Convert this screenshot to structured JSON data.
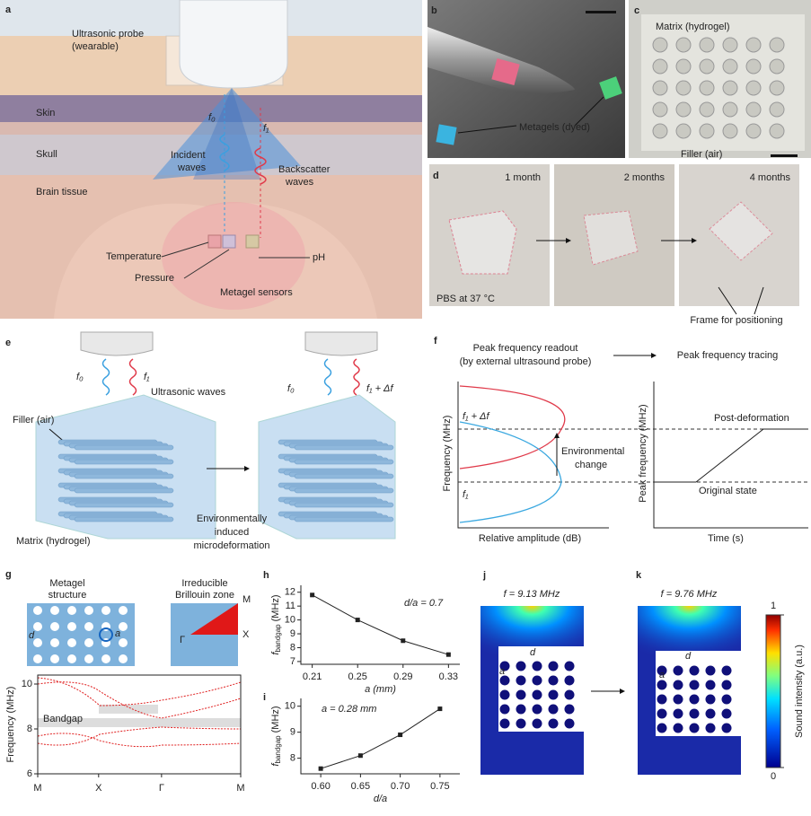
{
  "figure": {
    "a": {
      "letter": "a",
      "probe": [
        "Ultrasonic probe",
        "(wearable)"
      ],
      "skin": "Skin",
      "skull": "Skull",
      "brain": "Brain tissue",
      "f0": "f₀",
      "f1": "f₁",
      "incident": [
        "Incident",
        "waves"
      ],
      "backscatter": [
        "Backscatter",
        "waves"
      ],
      "temperature": "Temperature",
      "pressure": "Pressure",
      "ph": "pH",
      "sensors": "Metagel sensors"
    },
    "b": {
      "letter": "b",
      "label": "Metagels (dyed)"
    },
    "c": {
      "letter": "c",
      "matrix": "Matrix (hydrogel)",
      "filler": "Filler (air)"
    },
    "d": {
      "letter": "d",
      "times": [
        "1 month",
        "2 months",
        "4 months"
      ],
      "pbs": "PBS at 37 °C",
      "frame": "Frame for positioning"
    },
    "e": {
      "letter": "e",
      "f0": "f₀",
      "f1": "f₁",
      "waves": "Ultrasonic waves",
      "filler": "Filler (air)",
      "matrix": "Matrix (hydrogel)",
      "deformation": [
        "Environmentally",
        "induced",
        "microdeformation"
      ],
      "f0_right": "f₀",
      "f1_shift": "f₁ + Δf"
    },
    "f": {
      "letter": "f",
      "readout": [
        "Peak frequency readout",
        "(by external ultrasound probe)"
      ],
      "tracing": "Peak frequency tracing",
      "left_ylabel": "Frequency (MHz)",
      "left_xlabel": "Relative amplitude (dB)",
      "f1_shift": "f₁ + Δf",
      "f1": "f₁",
      "change": [
        "Environmental",
        "change"
      ],
      "right_ylabel": "Peak frequency (MHz)",
      "right_xlabel": "Time (s)",
      "post": "Post-deformation",
      "original": "Original state"
    },
    "g": {
      "letter": "g",
      "structure": [
        "Metagel",
        "structure"
      ],
      "zone": [
        "Irreducible",
        "Brillouin zone"
      ],
      "d": "d",
      "a": "a",
      "M": "M",
      "X": "X",
      "Gamma": "Γ"
    },
    "h": {
      "letter": "h"
    },
    "i": {
      "letter": "i"
    },
    "j": {
      "letter": "j",
      "freq": "f = 9.13 MHz",
      "d": "d",
      "a": "a"
    },
    "k": {
      "letter": "k",
      "freq": "f = 9.76 MHz",
      "d": "d",
      "a": "a"
    },
    "colorbar": {
      "label": "Sound intensity (a.u.)",
      "lim": [
        0,
        1
      ],
      "ticks": [
        0,
        1
      ]
    }
  },
  "chart_data": [
    {
      "type": "band",
      "categories": [
        "M",
        "X",
        "Γ",
        "M"
      ],
      "ylabel": "Frequency (MHz)",
      "annotation": "Bandgap",
      "ylim": [
        6,
        10.4
      ],
      "yticks": [
        6,
        8,
        10
      ]
    },
    {
      "type": "line",
      "x": [
        0.21,
        0.25,
        0.29,
        0.33
      ],
      "values": [
        11.8,
        10.0,
        8.5,
        7.5
      ],
      "ylabel": [
        "f",
        "bandgap",
        "(MHz)"
      ],
      "xlabel": "a (mm)",
      "annotation": "d/a = 0.7",
      "xlim": [
        0.2,
        0.34
      ],
      "xticks": [
        0.21,
        0.25,
        0.29,
        0.33
      ],
      "ylim": [
        6.8,
        12.5
      ],
      "yticks": [
        7,
        8,
        9,
        10,
        11,
        12
      ],
      "color": "#222222"
    },
    {
      "type": "line",
      "x": [
        0.6,
        0.65,
        0.7,
        0.75
      ],
      "values": [
        7.6,
        8.1,
        8.9,
        9.9
      ],
      "ylabel": [
        "f",
        "bandgap",
        "(MHz)"
      ],
      "xlabel": "d/a",
      "annotation": "a = 0.28 mm",
      "xlim": [
        0.575,
        0.775
      ],
      "xticks": [
        {
          "value": 0.6,
          "label": "0.60"
        },
        0.65,
        {
          "value": 0.7,
          "label": "0.70"
        },
        0.75
      ],
      "ylim": [
        7.4,
        10.3
      ],
      "yticks": [
        8,
        9,
        10
      ],
      "color": "#222222"
    }
  ]
}
